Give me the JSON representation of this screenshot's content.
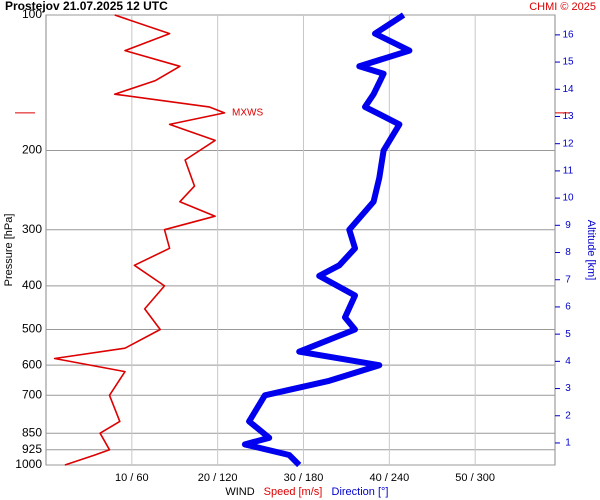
{
  "chart_data": {
    "type": "profile",
    "title": "Prostejov    21.07.2025 12 UTC",
    "credit": "CHMI © 2025",
    "ylabel": "Pressure [hPa]",
    "y2label": "Altitude [km]",
    "xlabel": "WIND",
    "pressure_log_scale": true,
    "ylim": [
      100,
      1000
    ],
    "yticks": [
      100,
      200,
      300,
      400,
      500,
      600,
      700,
      850,
      925,
      1000
    ],
    "y2lim": [
      0.19,
      16.73
    ],
    "y2ticks": [
      1,
      2,
      3,
      4,
      5,
      6,
      7,
      8,
      9,
      10,
      11,
      12,
      13,
      14,
      15,
      16
    ],
    "y2color": "#0000cc",
    "xlim": [
      0,
      59.3
    ],
    "x2lim": [
      0,
      355.8
    ],
    "xticks": [
      {
        "value": 10,
        "label": "10 / 60"
      },
      {
        "value": 20,
        "label": "20 / 120"
      },
      {
        "value": 30,
        "label": "30 / 180"
      },
      {
        "value": 40,
        "label": "40 / 240"
      },
      {
        "value": 50,
        "label": "50 / 300"
      }
    ],
    "grid": true,
    "series": [
      {
        "name": "Speed [m/s]",
        "color": "#dd0000",
        "axis": "x",
        "pressure": [
          100,
          110,
          120,
          130,
          140,
          150,
          160,
          165,
          175,
          190,
          210,
          240,
          260,
          280,
          300,
          330,
          360,
          400,
          450,
          500,
          550,
          580,
          620,
          700,
          800,
          850,
          925,
          950,
          1000
        ],
        "values": [
          8,
          14.4,
          9.2,
          15.6,
          12.7,
          8,
          19,
          20.8,
          14.4,
          19.7,
          16.2,
          17.3,
          15.6,
          19.7,
          13.8,
          14.4,
          10.3,
          13.8,
          11.5,
          13.3,
          9.2,
          1,
          9.2,
          7.4,
          8.6,
          6.3,
          7.4,
          5.7,
          2.2
        ]
      },
      {
        "name": "Direction [°]",
        "color": "#0000ee",
        "axis": "x2",
        "pressure": [
          100,
          110,
          120,
          130,
          135,
          150,
          160,
          175,
          200,
          230,
          260,
          300,
          330,
          360,
          380,
          420,
          470,
          500,
          560,
          600,
          650,
          700,
          800,
          870,
          900,
          950,
          1000
        ],
        "values": [
          250,
          230,
          254,
          219,
          236,
          229,
          223,
          247,
          236,
          233,
          229,
          212,
          216,
          205,
          191,
          216,
          209,
          216,
          177,
          233,
          198,
          153,
          142,
          156,
          139,
          170,
          177
        ]
      }
    ],
    "annotation": {
      "text": "MXWS",
      "pressure": 165
    }
  }
}
